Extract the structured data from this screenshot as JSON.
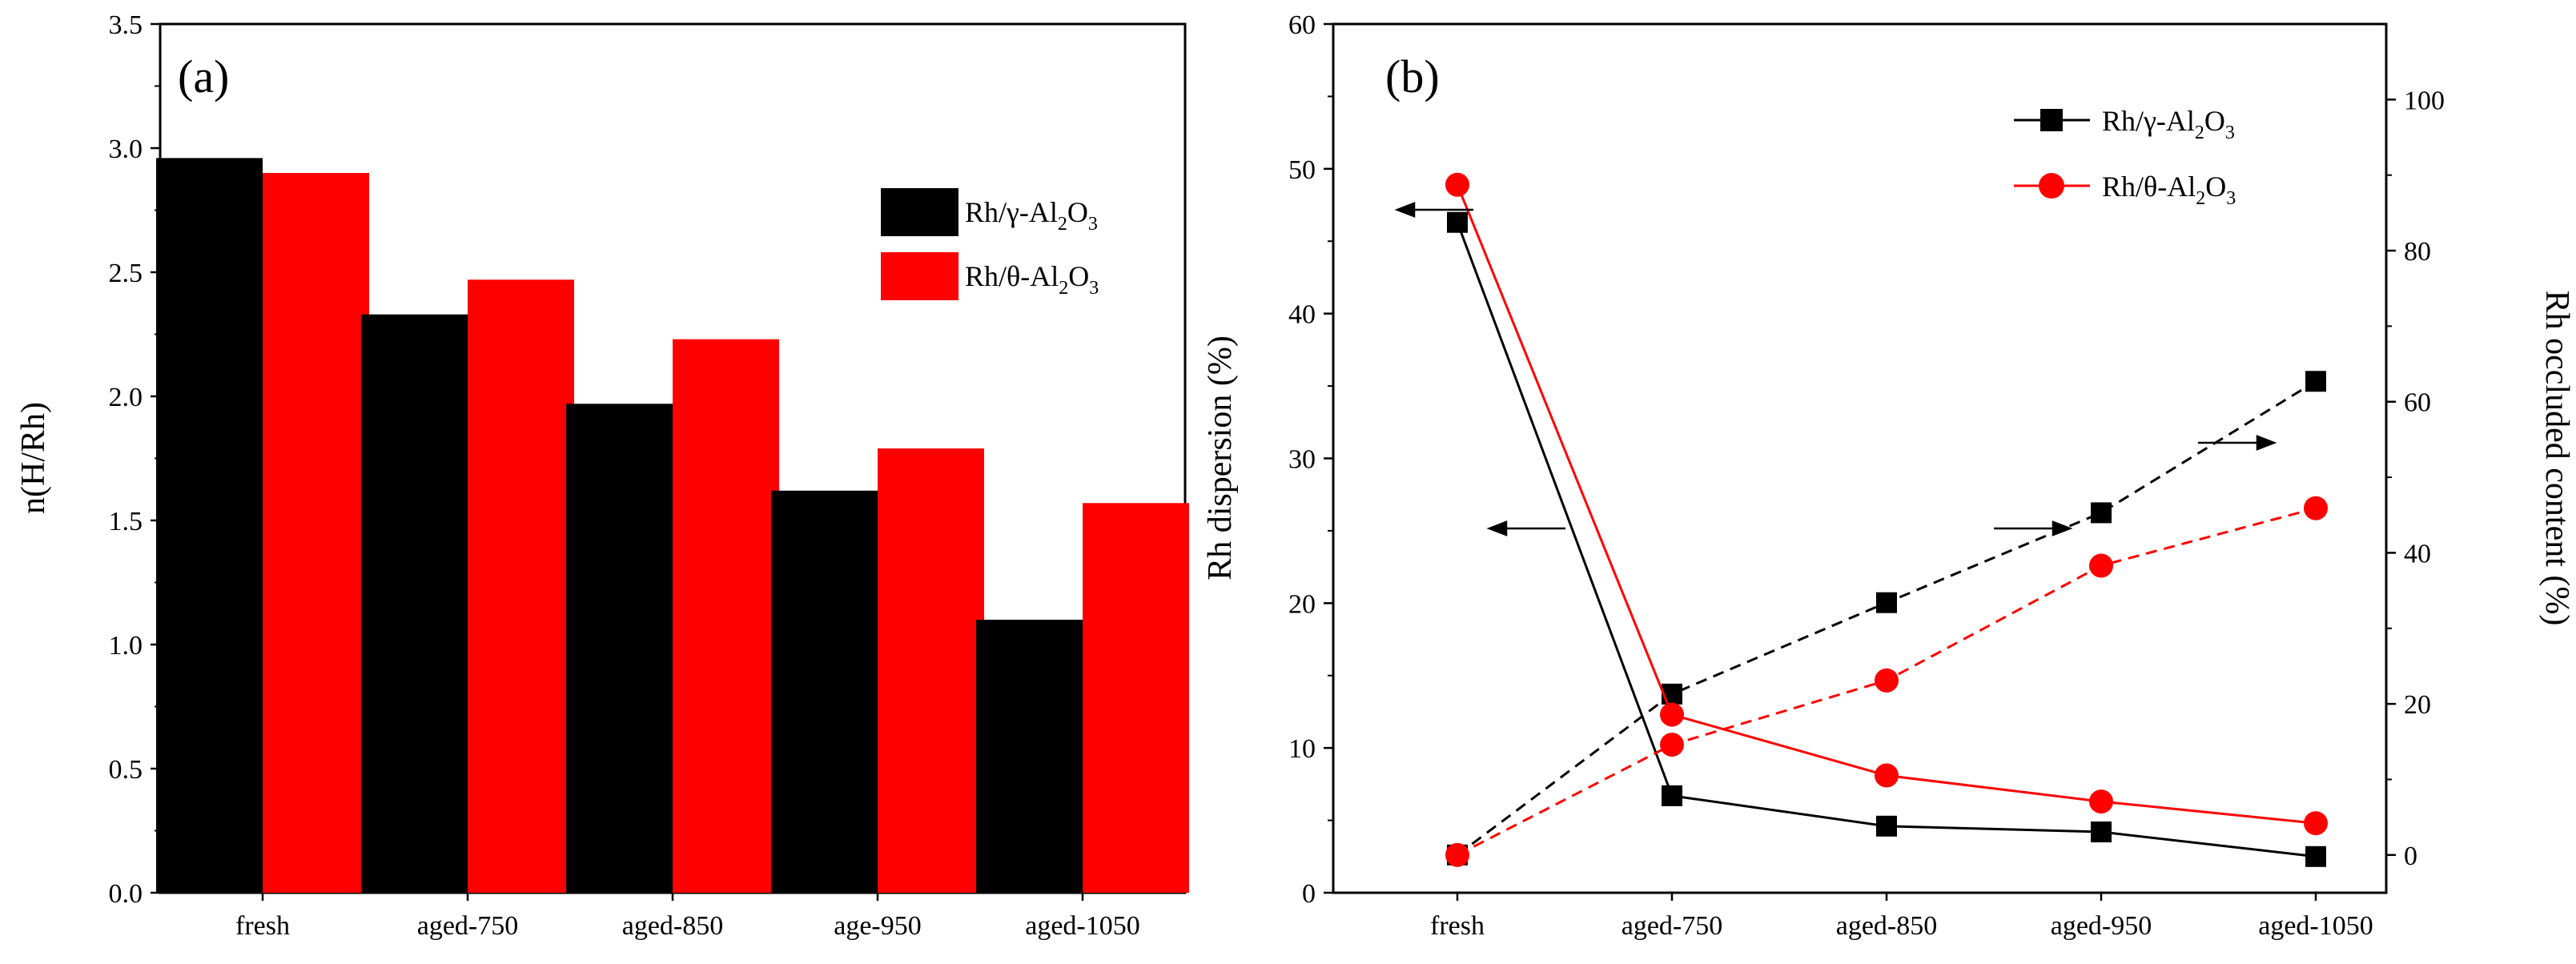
{
  "chart_data": [
    {
      "panel": "(a)",
      "type": "bar",
      "categories": [
        "fresh",
        "aged-750",
        "aged-850",
        "age-950",
        "aged-1050"
      ],
      "series": [
        {
          "name": "Rh/γ-Al2O3",
          "name_main": "Rh/γ-Al",
          "sub1": "2",
          "mid": "O",
          "sub2": "3",
          "color": "#000000",
          "values": [
            2.96,
            2.33,
            1.97,
            1.62,
            1.1
          ]
        },
        {
          "name": "Rh/θ-Al2O3",
          "name_main": "Rh/θ-Al",
          "sub1": "2",
          "mid": "O",
          "sub2": "3",
          "color": "#ff0000",
          "values": [
            2.9,
            2.47,
            2.23,
            1.79,
            1.57
          ]
        }
      ],
      "ylabel": "n(H/Rh)",
      "xlabel": "",
      "ylim": [
        0.0,
        3.5
      ],
      "yticks": [
        "0.0",
        "0.5",
        "1.0",
        "1.5",
        "2.0",
        "2.5",
        "3.0",
        "3.5"
      ],
      "legend_position": "top-right"
    },
    {
      "panel": "(b)",
      "type": "line",
      "categories": [
        "fresh",
        "aged-750",
        "aged-850",
        "aged-950",
        "aged-1050"
      ],
      "series": [
        {
          "name": "Rh/γ-Al2O3",
          "name_main": "Rh/γ-Al",
          "sub1": "2",
          "mid": "O",
          "sub2": "3",
          "color": "#000000",
          "marker": "square",
          "dispersion": [
            46.3,
            6.7,
            4.6,
            4.2,
            2.5
          ],
          "occluded": [
            0.0,
            21.3,
            33.4,
            45.3,
            62.7
          ]
        },
        {
          "name": "Rh/θ-Al2O3",
          "name_main": "Rh/θ-Al",
          "sub1": "2",
          "mid": "O",
          "sub2": "3",
          "color": "#ff0000",
          "marker": "circle",
          "dispersion": [
            48.9,
            12.3,
            8.1,
            6.3,
            4.8
          ],
          "occluded": [
            0.0,
            14.6,
            23.1,
            38.3,
            45.9
          ]
        }
      ],
      "ylabel_left": "Rh dispersion (%)",
      "ylabel_right": "Rh occluded content (%)",
      "ylim_left": [
        0,
        60
      ],
      "yticks_left": [
        "0",
        "10",
        "20",
        "30",
        "40",
        "50",
        "60"
      ],
      "ylim_right": [
        -5,
        110
      ],
      "yticks_right": [
        "0",
        "20",
        "40",
        "60",
        "80",
        "100"
      ],
      "legend_position": "top-right",
      "annotations": [
        "arrows: solid lines -> left axis (Rh dispersion); dashed lines -> right axis (Rh occluded content)"
      ]
    }
  ]
}
